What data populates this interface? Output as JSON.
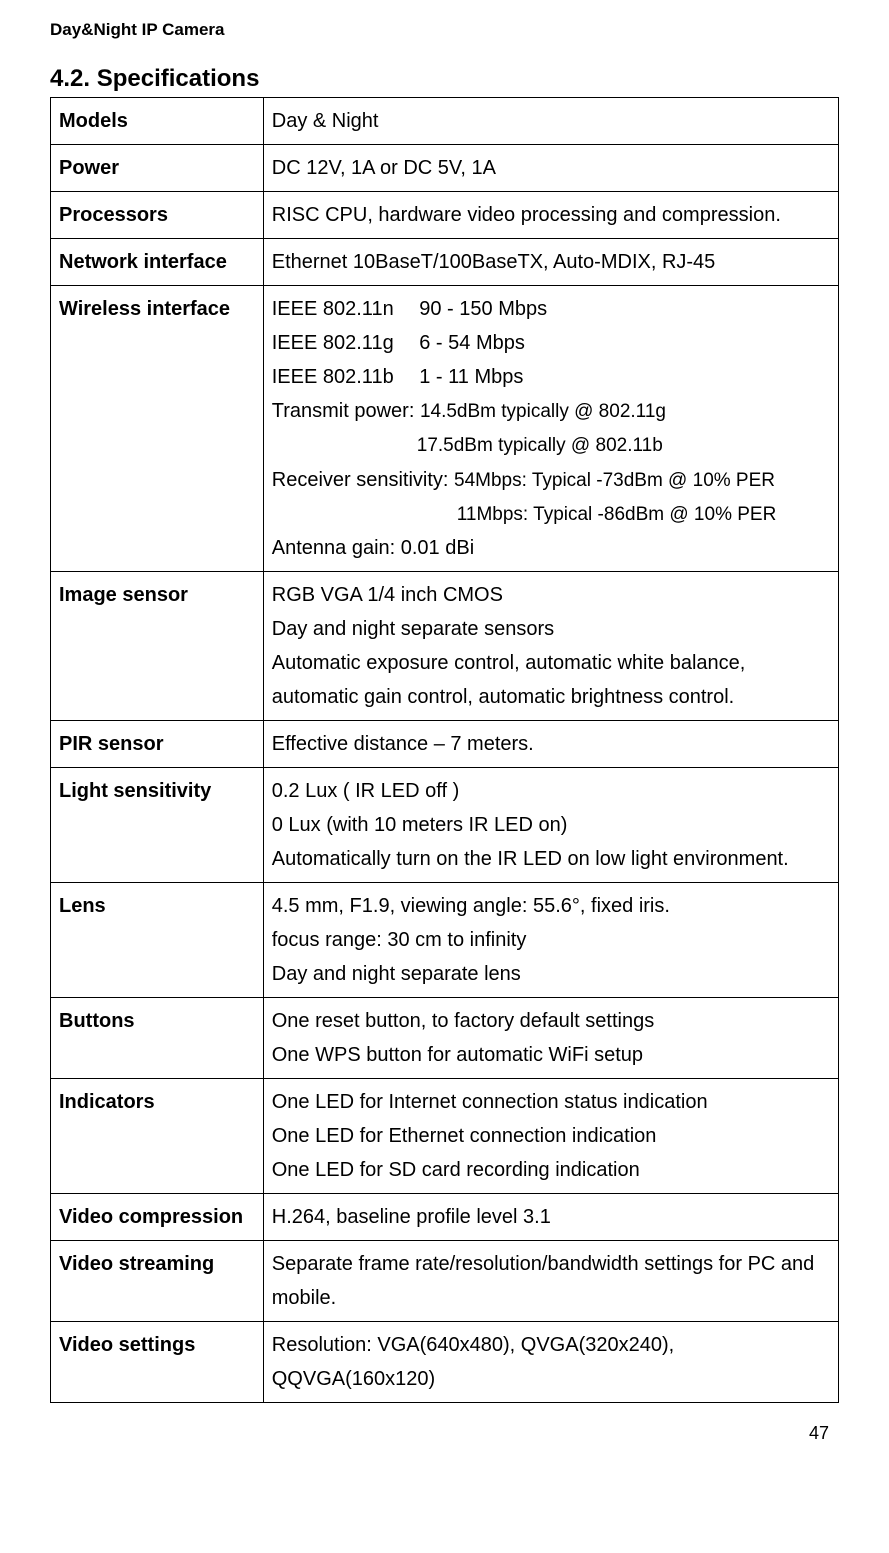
{
  "header": "Day&Night IP Camera",
  "sectionTitle": "4.2. Specifications",
  "pageNumber": "47",
  "rows": [
    {
      "label": "Models",
      "value": "Day & Night"
    },
    {
      "label": "Power",
      "value": "DC 12V, 1A or DC 5V, 1A"
    },
    {
      "label": "Processors",
      "value": "RISC CPU, hardware video processing and compression."
    },
    {
      "label": "Network interface",
      "value": "Ethernet 10BaseT/100BaseTX, Auto-MDIX, RJ-45"
    }
  ],
  "wireless": {
    "label": "Wireless interface",
    "line1": "IEEE 802.11n  90 - 150 Mbps",
    "line2": "IEEE 802.11g  6 - 54 Mbps",
    "line3": "IEEE 802.11b  1 - 11 Mbps",
    "line4a": "Transmit power: ",
    "line4b": "14.5dBm typically @ 802.11g",
    "line5": "17.5dBm typically @ 802.11b",
    "line6a": "Receiver sensitivity: ",
    "line6b": "54Mbps: Typical -73dBm @ 10% PER",
    "line7": "11Mbps: Typical -86dBm @ 10% PER",
    "line8": "Antenna gain: 0.01 dBi"
  },
  "imageSensor": {
    "label": "Image sensor",
    "l1": "RGB VGA 1/4 inch CMOS",
    "l2": "Day and night separate sensors",
    "l3": "Automatic exposure control, automatic white balance, automatic gain control, automatic brightness control."
  },
  "pirSensor": {
    "label": "PIR sensor",
    "value": "Effective distance – 7 meters."
  },
  "lightSensitivity": {
    "label": "Light sensitivity",
    "l1": "0.2 Lux ( IR LED off )",
    "l2": "0 Lux (with 10 meters IR LED on)",
    "l3": "Automatically turn on the IR LED on low light environment."
  },
  "lens": {
    "label": "Lens",
    "l1": "4.5 mm, F1.9, viewing angle: 55.6°, fixed iris.",
    "l2": "focus range: 30 cm to infinity",
    "l3": "Day and night separate lens"
  },
  "buttons": {
    "label": "Buttons",
    "l1": "One reset button, to factory default settings",
    "l2": "One WPS button for automatic WiFi setup"
  },
  "indicators": {
    "label": "Indicators",
    "l1": "One LED for Internet connection status indication",
    "l2": "One LED for Ethernet connection indication",
    "l3": "One LED for SD card recording indication"
  },
  "videoCompression": {
    "label": "Video compression",
    "value": "H.264, baseline profile level 3.1"
  },
  "videoStreaming": {
    "label": "Video streaming",
    "value": "Separate frame rate/resolution/bandwidth settings for PC and mobile."
  },
  "videoSettings": {
    "label": "Video settings",
    "value": "Resolution: VGA(640x480), QVGA(320x240), QQVGA(160x120)"
  }
}
